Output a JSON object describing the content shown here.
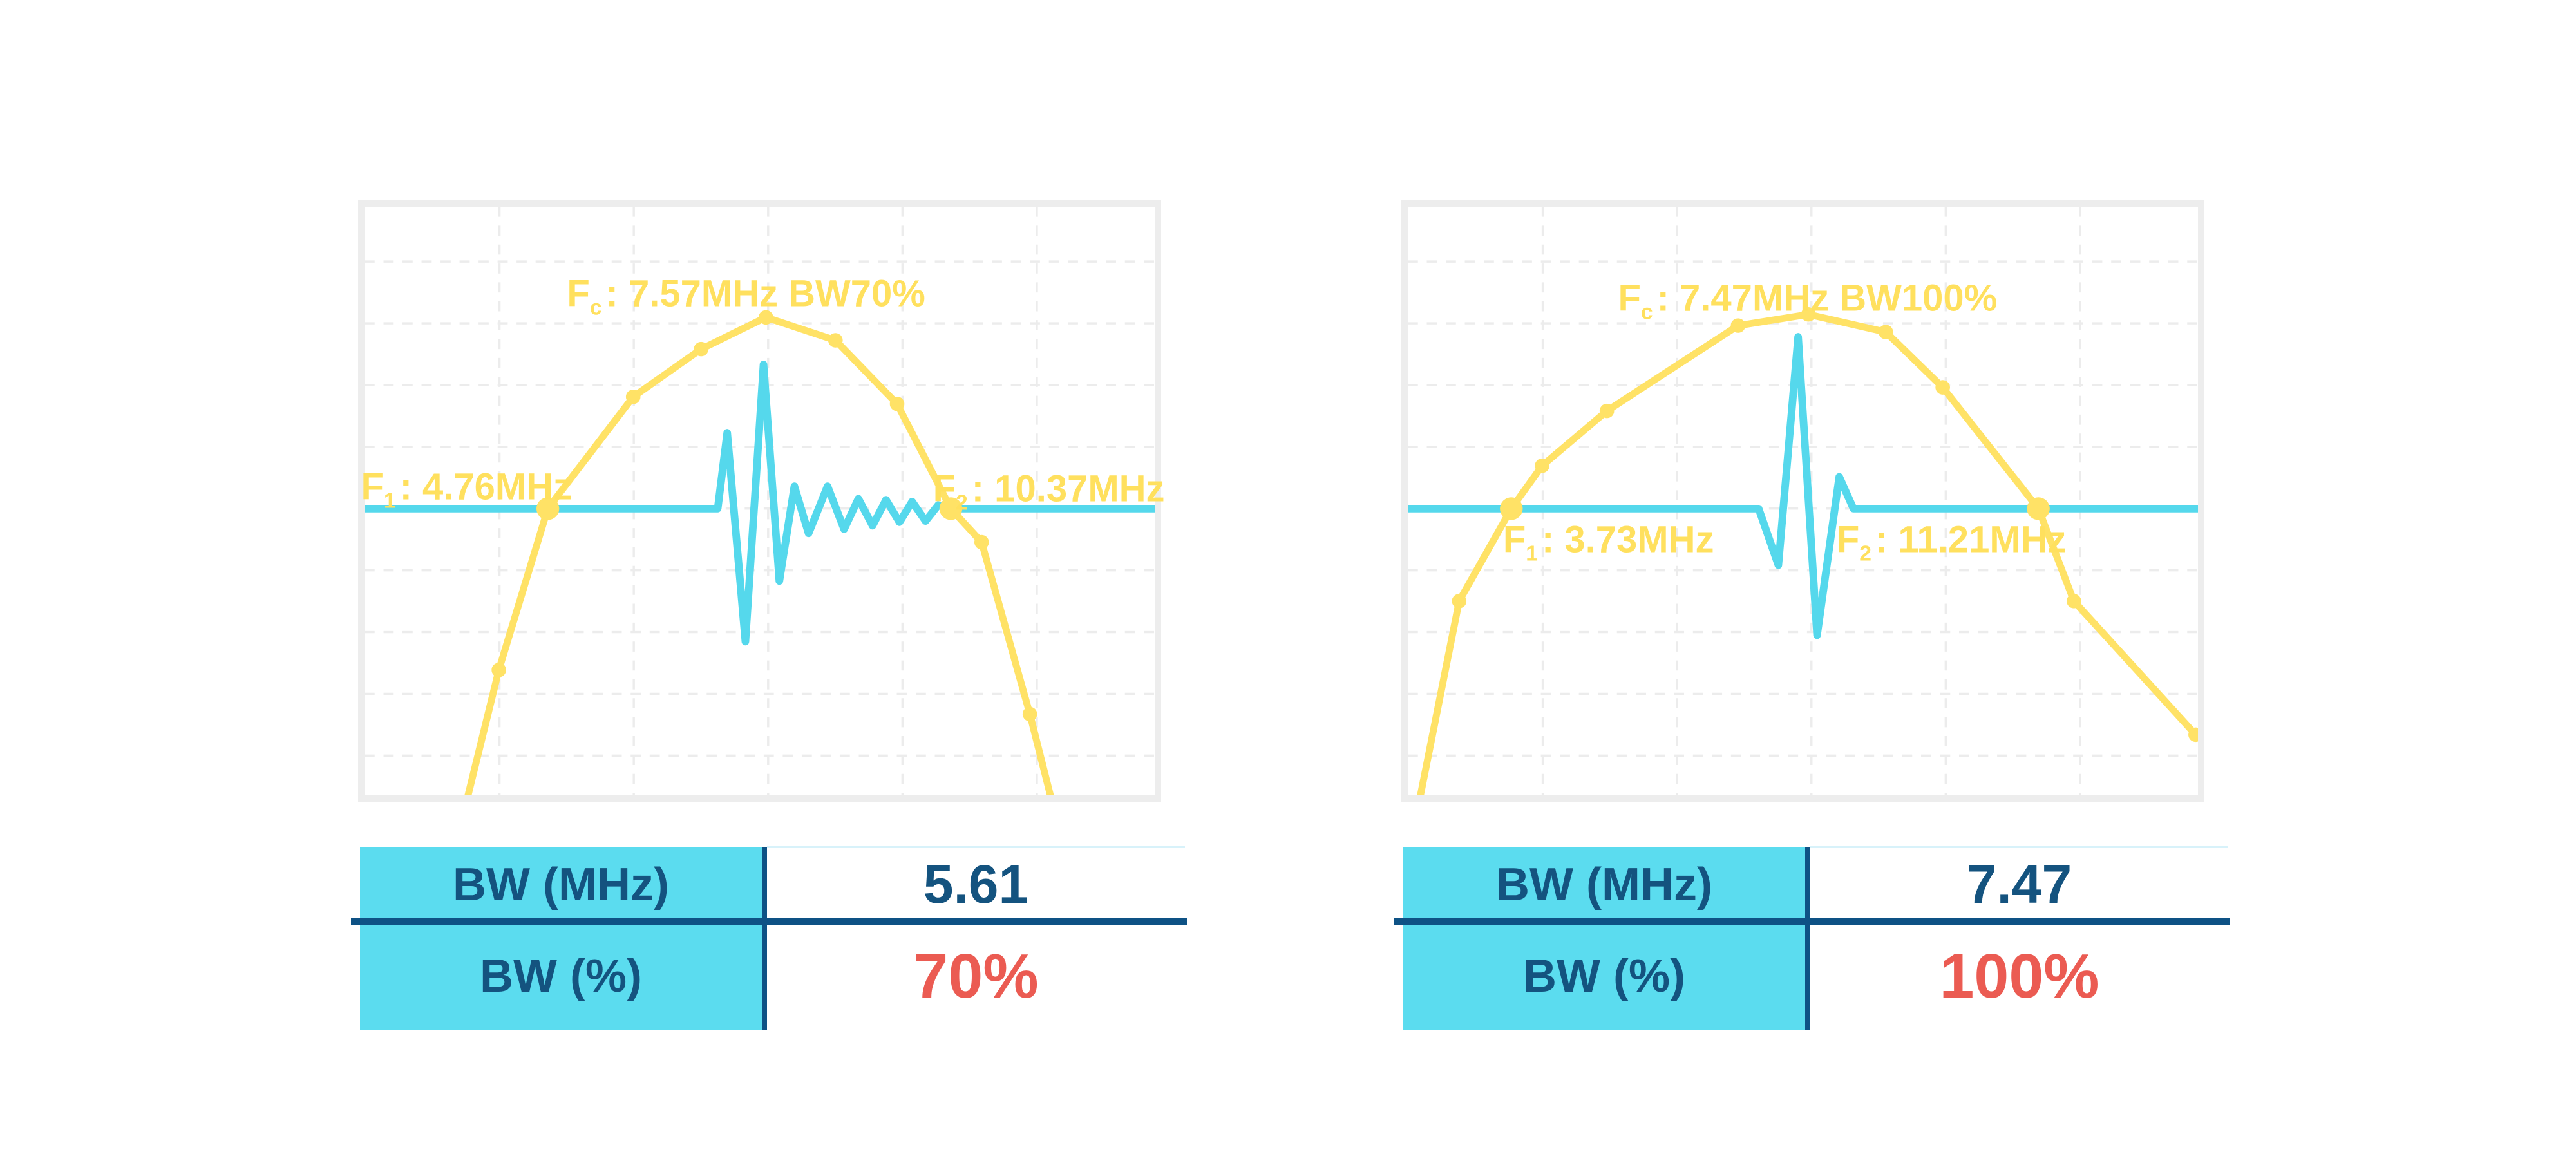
{
  "colors": {
    "spectrum_yellow": "#ffe266",
    "label_yellow": "#ffe05e",
    "pulse_cyan": "#55d8ec",
    "table_header_cyan": "#5bdcef",
    "navy_text": "#14537f",
    "navy_line": "#0e5285",
    "highlight_red": "#eb5b52",
    "frame_gray": "#ededed",
    "grid_gray": "#ececec",
    "value_topline_cyan": "#d8f2fa"
  },
  "chart_data": {
    "type": "line",
    "title": "",
    "xlabel": "",
    "ylabel": "",
    "grid": "dashed, no tick labels, no axis labels",
    "legend": "none",
    "description": "Two transducer frequency-spectrum plots (yellow spectrum curve with point markers, cyan pulse-echo waveform on the baseline) with a bandwidth summary table under each.",
    "charts": [
      {
        "name": "bw-70-percent",
        "values": {
          "fc_mhz": 7.57,
          "f1_mhz": 4.76,
          "f2_mhz": 10.37,
          "bw_mhz": 5.61,
          "bw_percent": 70
        },
        "labels": {
          "fc": {
            "prefix": "F",
            "sub": "c",
            "rest": ": 7.57MHz BW70%"
          },
          "f1": {
            "prefix": "F",
            "sub": "1",
            "rest": ": 4.76MHz"
          },
          "f2": {
            "prefix": "F",
            "sub": "2",
            "rest": ": 10.37MHz"
          }
        },
        "baseline_y": 0.513,
        "spectrum_points": [
          [
            0.131,
            1.0
          ],
          [
            0.17,
            0.787
          ],
          [
            0.232,
            0.513
          ],
          [
            0.34,
            0.323
          ],
          [
            0.426,
            0.242
          ],
          [
            0.508,
            0.188
          ],
          [
            0.596,
            0.227
          ],
          [
            0.674,
            0.335
          ],
          [
            0.742,
            0.513
          ],
          [
            0.781,
            0.57
          ],
          [
            0.842,
            0.862
          ],
          [
            0.868,
            1.0
          ]
        ],
        "spectrum_markers": [
          [
            0.17,
            0.787
          ],
          [
            0.34,
            0.323
          ],
          [
            0.426,
            0.242
          ],
          [
            0.508,
            0.188
          ],
          [
            0.596,
            0.227
          ],
          [
            0.674,
            0.335
          ],
          [
            0.781,
            0.57
          ],
          [
            0.842,
            0.862
          ]
        ],
        "halfpower_markers": [
          [
            0.232,
            0.513
          ],
          [
            0.742,
            0.513
          ]
        ],
        "pulse_points": [
          [
            0,
            0.513
          ],
          [
            0.447,
            0.513
          ],
          [
            0.459,
            0.384
          ],
          [
            0.482,
            0.739
          ],
          [
            0.505,
            0.268
          ],
          [
            0.525,
            0.636
          ],
          [
            0.544,
            0.475
          ],
          [
            0.562,
            0.555
          ],
          [
            0.586,
            0.475
          ],
          [
            0.607,
            0.548
          ],
          [
            0.625,
            0.496
          ],
          [
            0.643,
            0.542
          ],
          [
            0.66,
            0.498
          ],
          [
            0.677,
            0.536
          ],
          [
            0.693,
            0.501
          ],
          [
            0.71,
            0.534
          ],
          [
            0.726,
            0.507
          ],
          [
            0.739,
            0.513
          ],
          [
            1,
            0.513
          ]
        ],
        "table": {
          "rows": [
            {
              "label": "BW (MHz)",
              "value": "5.61"
            },
            {
              "label": "BW (%)",
              "value": "70%"
            }
          ]
        }
      },
      {
        "name": "bw-100-percent",
        "values": {
          "fc_mhz": 7.47,
          "f1_mhz": 3.73,
          "f2_mhz": 11.21,
          "bw_mhz": 7.47,
          "bw_percent": 100
        },
        "labels": {
          "fc": {
            "prefix": "F",
            "sub": "c",
            "rest": ": 7.47MHz BW100%"
          },
          "f1": {
            "prefix": "F",
            "sub": "1",
            "rest": ": 3.73MHz"
          },
          "f2": {
            "prefix": "F",
            "sub": "2",
            "rest": ": 11.21MHz"
          }
        },
        "baseline_y": 0.513,
        "spectrum_points": [
          [
            0.016,
            1.0
          ],
          [
            0.065,
            0.67
          ],
          [
            0.131,
            0.513
          ],
          [
            0.17,
            0.44
          ],
          [
            0.252,
            0.347
          ],
          [
            0.418,
            0.202
          ],
          [
            0.507,
            0.183
          ],
          [
            0.605,
            0.213
          ],
          [
            0.677,
            0.307
          ],
          [
            0.798,
            0.513
          ],
          [
            0.843,
            0.67
          ],
          [
            0.997,
            0.897
          ]
        ],
        "spectrum_markers": [
          [
            0.065,
            0.67
          ],
          [
            0.17,
            0.44
          ],
          [
            0.252,
            0.347
          ],
          [
            0.418,
            0.202
          ],
          [
            0.507,
            0.183
          ],
          [
            0.605,
            0.213
          ],
          [
            0.677,
            0.307
          ],
          [
            0.843,
            0.67
          ],
          [
            0.997,
            0.897
          ]
        ],
        "halfpower_markers": [
          [
            0.131,
            0.513
          ],
          [
            0.798,
            0.513
          ]
        ],
        "pulse_points": [
          [
            0,
            0.513
          ],
          [
            0.444,
            0.513
          ],
          [
            0.469,
            0.609
          ],
          [
            0.494,
            0.221
          ],
          [
            0.518,
            0.728
          ],
          [
            0.546,
            0.459
          ],
          [
            0.564,
            0.513
          ],
          [
            1,
            0.513
          ]
        ],
        "table": {
          "rows": [
            {
              "label": "BW (MHz)",
              "value": "7.47"
            },
            {
              "label": "BW (%)",
              "value": "100%"
            }
          ]
        }
      }
    ]
  }
}
